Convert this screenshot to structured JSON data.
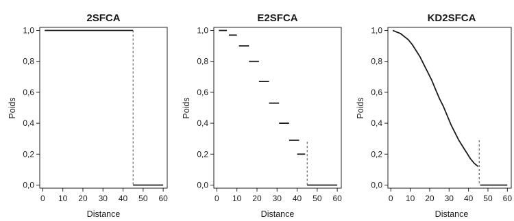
{
  "chart_data": [
    {
      "type": "line",
      "title": "2SFCA",
      "xlabel": "Distance",
      "ylabel": "Poids",
      "xlim": [
        -1.5,
        62
      ],
      "ylim": [
        -0.02,
        1.02
      ],
      "x_ticks": [
        "0",
        "10",
        "20",
        "30",
        "40",
        "50",
        "60"
      ],
      "y_ticks": [
        "0,0",
        "0,2",
        "0,4",
        "0,6",
        "0,8",
        "1,0"
      ],
      "series": [
        {
          "style": "solid",
          "x": [
            1,
            45
          ],
          "y": [
            1.0,
            1.0
          ]
        },
        {
          "style": "solid",
          "x": [
            45,
            60
          ],
          "y": [
            0.0,
            0.0
          ]
        }
      ],
      "cutoff": {
        "x": 45,
        "y_top": 1.0
      }
    },
    {
      "type": "line",
      "title": "E2SFCA",
      "xlabel": "Distance",
      "ylabel": "Poids",
      "xlim": [
        -1.5,
        62
      ],
      "ylim": [
        -0.02,
        1.02
      ],
      "x_ticks": [
        "0",
        "10",
        "20",
        "30",
        "40",
        "50",
        "60"
      ],
      "y_ticks": [
        "0,0",
        "0,2",
        "0,4",
        "0,6",
        "0,8",
        "1,0"
      ],
      "steps": [
        {
          "x0": 1,
          "x1": 5,
          "y": 1.0
        },
        {
          "x0": 6,
          "x1": 10,
          "y": 0.97
        },
        {
          "x0": 11,
          "x1": 16,
          "y": 0.9
        },
        {
          "x0": 16,
          "x1": 21,
          "y": 0.8
        },
        {
          "x0": 21,
          "x1": 26,
          "y": 0.67
        },
        {
          "x0": 26,
          "x1": 31,
          "y": 0.53
        },
        {
          "x0": 31,
          "x1": 36,
          "y": 0.4
        },
        {
          "x0": 36,
          "x1": 41,
          "y": 0.29
        },
        {
          "x0": 40,
          "x1": 44,
          "y": 0.2
        }
      ],
      "series": [
        {
          "style": "solid",
          "x": [
            45,
            60
          ],
          "y": [
            0.0,
            0.0
          ]
        }
      ],
      "cutoff": {
        "x": 45,
        "y_top": 0.28
      }
    },
    {
      "type": "line",
      "title": "KD2SFCA",
      "xlabel": "Distance",
      "ylabel": "Poids",
      "xlim": [
        -1.5,
        62
      ],
      "ylim": [
        -0.02,
        1.02
      ],
      "x_ticks": [
        "0",
        "10",
        "20",
        "30",
        "40",
        "50",
        "60"
      ],
      "y_ticks": [
        "0,0",
        "0,2",
        "0,4",
        "0,6",
        "0,8",
        "1,0"
      ],
      "series": [
        {
          "style": "solid",
          "x": [
            1,
            3,
            5,
            7,
            9,
            11,
            13,
            15,
            17,
            19,
            21,
            23,
            25,
            27,
            29,
            31,
            33,
            35,
            37,
            39,
            41,
            43,
            45
          ],
          "y": [
            1.0,
            0.99,
            0.98,
            0.96,
            0.94,
            0.91,
            0.87,
            0.83,
            0.78,
            0.73,
            0.68,
            0.62,
            0.56,
            0.51,
            0.45,
            0.39,
            0.34,
            0.29,
            0.25,
            0.21,
            0.17,
            0.14,
            0.12
          ]
        },
        {
          "style": "solid",
          "x": [
            46,
            60
          ],
          "y": [
            0.0,
            0.0
          ]
        }
      ],
      "cutoff": {
        "x": 45.5,
        "y_top": 0.29
      }
    }
  ]
}
